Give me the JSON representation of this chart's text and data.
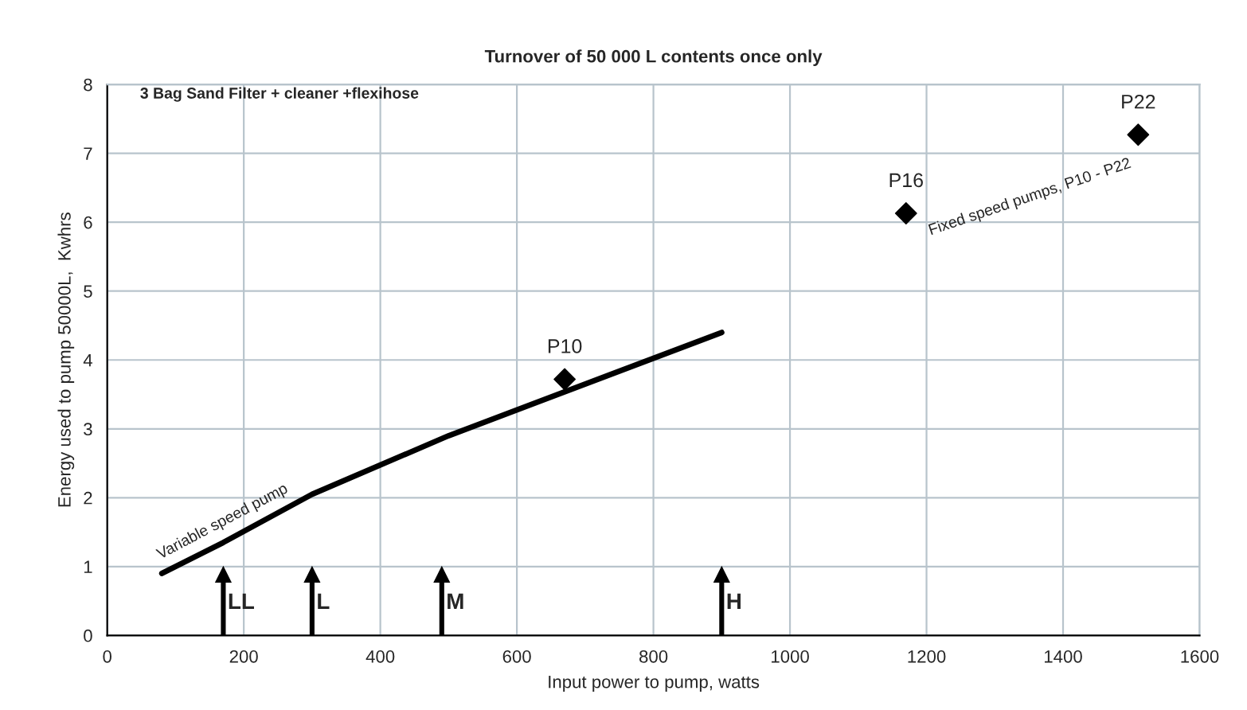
{
  "chart_data": {
    "type": "line",
    "title": "Turnover of 50 000 L contents once only",
    "xlabel": "Input power to pump, watts",
    "ylabel": "Energy used to pump 50000L,  Kwhrs",
    "series": [
      {
        "name": "Variable speed pump",
        "color": "#000000",
        "x": [
          80,
          170,
          300,
          500,
          900
        ],
        "values": [
          0.9,
          1.35,
          2.05,
          2.9,
          4.4
        ]
      },
      {
        "name": "Fixed speed pumps, P10 - P22",
        "type": "scatter",
        "color": "#000000",
        "marker": "diamond",
        "x": [
          670,
          1170,
          1510
        ],
        "values": [
          3.72,
          6.13,
          7.27
        ]
      }
    ],
    "annotations": [
      {
        "text": "3 Bag Sand Filter + cleaner +flexihose"
      },
      {
        "text": "P10",
        "x": 670,
        "y": 3.72
      },
      {
        "text": "P16",
        "x": 1170,
        "y": 6.13
      },
      {
        "text": "P22",
        "x": 1510,
        "y": 7.27
      }
    ],
    "ref_lines": [
      {
        "axis": "x",
        "value": 170,
        "label": "LL"
      },
      {
        "axis": "x",
        "value": 300,
        "label": "L"
      },
      {
        "axis": "x",
        "value": 490,
        "label": "M"
      },
      {
        "axis": "x",
        "value": 900,
        "label": "H"
      }
    ],
    "xlim": [
      0,
      1600
    ],
    "xticks": [
      0,
      200,
      400,
      600,
      800,
      1000,
      1200,
      1400,
      1600
    ],
    "ylim": [
      0,
      8
    ],
    "yticks": [
      0,
      1,
      2,
      3,
      4,
      5,
      6,
      7,
      8
    ],
    "grid": true,
    "legend": false
  }
}
